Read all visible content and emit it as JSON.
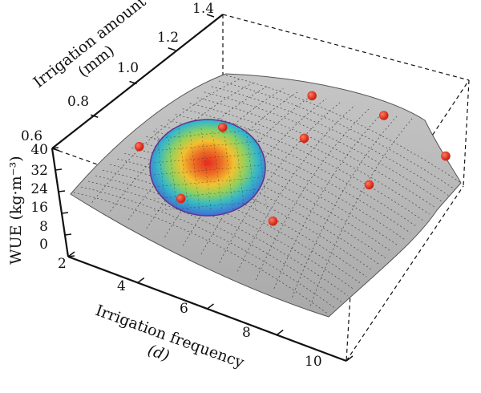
{
  "chart_data": {
    "type": "surface3d",
    "title": "",
    "x_axis": {
      "label_line1": "Irrigation frequency",
      "label_line2": "(d)",
      "ticks": [
        "2",
        "4",
        "6",
        "8",
        "10"
      ],
      "range": [
        2,
        10
      ]
    },
    "y_axis": {
      "label_line1": "Irrigation amount",
      "label_line2": "(mm)",
      "ticks": [
        "0.6",
        "0.8",
        "1.0",
        "1.2",
        "1.4"
      ],
      "range": [
        0.6,
        1.4
      ]
    },
    "z_axis": {
      "label": "WUE (kg·m⁻³)",
      "ticks": [
        "0",
        "8",
        "16",
        "24",
        "32",
        "40"
      ],
      "range": [
        0,
        40
      ]
    },
    "grid": true,
    "surface_color": "#b8b8b8",
    "highlight": "elliptical heat-map region showing maximum WUE",
    "points": [
      {
        "x": 3.0,
        "y": 0.85,
        "z": 30
      },
      {
        "x": 4.3,
        "y": 1.05,
        "z": 31
      },
      {
        "x": 5.5,
        "y": 1.3,
        "z": 33
      },
      {
        "x": 6.4,
        "y": 1.1,
        "z": 34
      },
      {
        "x": 7.4,
        "y": 1.33,
        "z": 33
      },
      {
        "x": 4.9,
        "y": 0.72,
        "z": 28
      },
      {
        "x": 7.2,
        "y": 0.78,
        "z": 27
      },
      {
        "x": 8.5,
        "y": 1.05,
        "z": 30
      },
      {
        "x": 9.3,
        "y": 1.3,
        "z": 29
      }
    ],
    "point_color": "#e0301e"
  }
}
